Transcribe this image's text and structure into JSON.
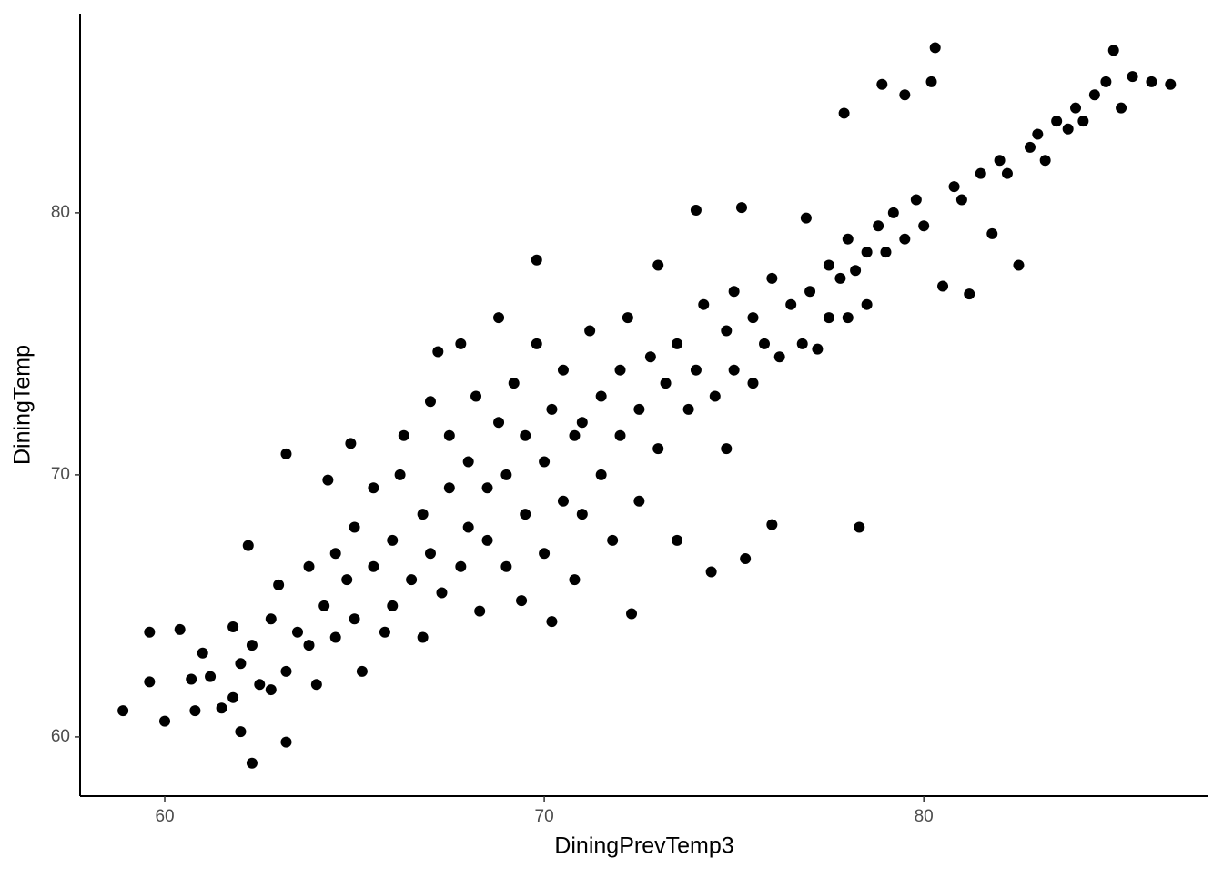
{
  "chart_data": {
    "type": "scatter",
    "x_label": "DiningPrevTemp3",
    "y_label": "DiningTemp",
    "xlim": [
      57.77,
      87.5
    ],
    "ylim": [
      57.74,
      87.6
    ],
    "xticks": [
      60,
      70,
      80
    ],
    "yticks": [
      60,
      70,
      80
    ],
    "grid": false,
    "color": "#000000",
    "x": [
      58.9,
      59.6,
      59.6,
      60.0,
      60.4,
      60.7,
      60.8,
      61.0,
      61.2,
      61.5,
      61.8,
      61.8,
      62.0,
      62.0,
      62.2,
      62.3,
      62.3,
      62.5,
      62.8,
      62.8,
      63.0,
      63.2,
      63.2,
      63.2,
      63.5,
      63.8,
      63.8,
      64.0,
      64.2,
      64.3,
      64.5,
      64.5,
      64.8,
      64.9,
      65.0,
      65.0,
      65.2,
      65.5,
      65.5,
      65.8,
      66.0,
      66.0,
      66.2,
      66.3,
      66.5,
      66.8,
      66.8,
      67.0,
      67.0,
      67.2,
      67.3,
      67.5,
      67.5,
      67.8,
      67.8,
      68.0,
      68.0,
      68.2,
      68.3,
      68.5,
      68.5,
      68.8,
      68.8,
      69.0,
      69.0,
      69.2,
      69.4,
      69.5,
      69.5,
      69.8,
      69.8,
      70.0,
      70.0,
      70.2,
      70.2,
      70.5,
      70.5,
      70.8,
      70.8,
      71.0,
      71.0,
      71.2,
      71.5,
      71.5,
      71.8,
      72.0,
      72.0,
      72.3,
      72.2,
      72.5,
      72.5,
      72.8,
      73.0,
      73.0,
      73.2,
      73.5,
      73.5,
      73.8,
      74.0,
      74.0,
      74.2,
      74.4,
      74.5,
      74.8,
      74.8,
      75.0,
      75.0,
      75.2,
      75.3,
      75.5,
      75.5,
      75.8,
      76.0,
      76.0,
      76.2,
      76.5,
      76.8,
      76.9,
      77.0,
      77.2,
      77.5,
      77.5,
      77.8,
      77.9,
      78.0,
      78.0,
      78.3,
      78.2,
      78.5,
      78.5,
      78.8,
      78.9,
      79.0,
      79.2,
      79.5,
      79.5,
      79.8,
      80.0,
      80.2,
      80.3,
      80.5,
      80.8,
      81.0,
      81.2,
      81.5,
      81.8,
      82.0,
      82.2,
      82.5,
      82.8,
      83.0,
      83.2,
      83.5,
      83.8,
      84.0,
      84.2,
      84.5,
      84.8,
      85.0,
      85.2,
      85.5,
      86.0,
      86.5
    ],
    "values": [
      61.0,
      64.0,
      62.1,
      60.6,
      64.1,
      62.2,
      61.0,
      63.2,
      62.3,
      61.1,
      64.2,
      61.5,
      62.8,
      60.2,
      67.3,
      59.0,
      63.5,
      62.0,
      64.5,
      61.8,
      65.8,
      70.8,
      62.5,
      59.8,
      64.0,
      63.5,
      66.5,
      62.0,
      65.0,
      69.8,
      67.0,
      63.8,
      66.0,
      71.2,
      64.5,
      68.0,
      62.5,
      66.5,
      69.5,
      64.0,
      67.5,
      65.0,
      70.0,
      71.5,
      66.0,
      68.5,
      63.8,
      72.8,
      67.0,
      74.7,
      65.5,
      69.5,
      71.5,
      66.5,
      75.0,
      68.0,
      70.5,
      73.0,
      64.8,
      67.5,
      69.5,
      72.0,
      76.0,
      66.5,
      70.0,
      73.5,
      65.2,
      68.5,
      71.5,
      75.0,
      78.2,
      67.0,
      70.5,
      72.5,
      64.4,
      69.0,
      74.0,
      71.5,
      66.0,
      72.0,
      68.5,
      75.5,
      70.0,
      73.0,
      67.5,
      71.5,
      74.0,
      64.7,
      76.0,
      72.5,
      69.0,
      74.5,
      71.0,
      78.0,
      73.5,
      75.0,
      67.5,
      72.5,
      74.0,
      80.1,
      76.5,
      66.3,
      73.0,
      75.5,
      71.0,
      77.0,
      74.0,
      80.2,
      66.8,
      76.0,
      73.5,
      75.0,
      77.5,
      68.1,
      74.5,
      76.5,
      75.0,
      79.8,
      77.0,
      74.8,
      78.0,
      76.0,
      77.5,
      83.8,
      79.0,
      76.0,
      68.0,
      77.8,
      78.5,
      76.5,
      79.5,
      84.9,
      78.5,
      80.0,
      79.0,
      84.5,
      80.5,
      79.5,
      85.0,
      86.3,
      77.2,
      81.0,
      80.5,
      76.9,
      81.5,
      79.2,
      82.0,
      81.5,
      78.0,
      82.5,
      83.0,
      82.0,
      83.5,
      83.2,
      84.0,
      83.5,
      84.5,
      85.0,
      86.2,
      84.0,
      85.2,
      85.0,
      84.9
    ]
  }
}
